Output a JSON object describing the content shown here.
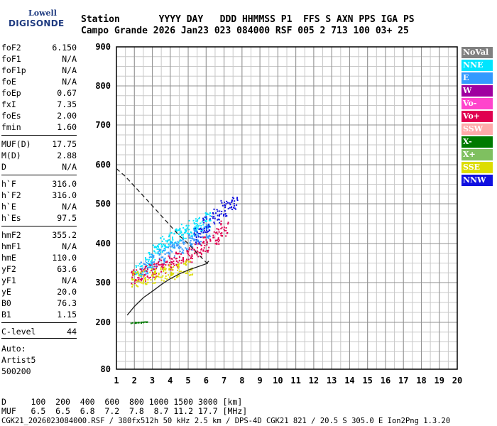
{
  "logo": {
    "line1": "Lowell",
    "line2": "DIGISONDE"
  },
  "header": {
    "row1": "Station       YYYY DAY   DDD HHMMSS P1  FFS S AXN PPS IGA PS",
    "row2": "Campo Grande 2026 Jan23 023 084000 RSF 005 2 713 100 03+ 25"
  },
  "params": [
    {
      "name": "foF2",
      "value": "6.150"
    },
    {
      "name": "foF1",
      "value": "N/A"
    },
    {
      "name": "foF1p",
      "value": "N/A"
    },
    {
      "name": "foE",
      "value": "N/A"
    },
    {
      "name": "foEp",
      "value": "0.67"
    },
    {
      "name": "fxI",
      "value": "7.35"
    },
    {
      "name": "foEs",
      "value": "2.00"
    },
    {
      "name": "fmin",
      "value": "1.60"
    },
    {
      "name": "MUF(D)",
      "value": "17.75"
    },
    {
      "name": "M(D)",
      "value": "2.88"
    },
    {
      "name": "D",
      "value": "N/A"
    },
    {
      "name": "h`F",
      "value": "316.0"
    },
    {
      "name": "h`F2",
      "value": "316.0"
    },
    {
      "name": "h`E",
      "value": "N/A"
    },
    {
      "name": "h`Es",
      "value": "97.5"
    },
    {
      "name": "hmF2",
      "value": "355.2"
    },
    {
      "name": "hmF1",
      "value": "N/A"
    },
    {
      "name": "hmE",
      "value": "110.0"
    },
    {
      "name": "yF2",
      "value": "63.6"
    },
    {
      "name": "yF1",
      "value": "N/A"
    },
    {
      "name": "yE",
      "value": "20.0"
    },
    {
      "name": "B0",
      "value": "76.3"
    },
    {
      "name": "B1",
      "value": "1.15"
    },
    {
      "name": "C-level",
      "value": "44"
    }
  ],
  "auto": {
    "line1": "Auto:",
    "line2": "Artist5",
    "line3": "500200"
  },
  "legend": [
    {
      "label": "NoVal",
      "color": "#808080"
    },
    {
      "label": "NNE",
      "color": "#00e5ff"
    },
    {
      "label": "E",
      "color": "#3399ff"
    },
    {
      "label": "W",
      "color": "#a000a0"
    },
    {
      "label": "Vo-",
      "color": "#ff44cc"
    },
    {
      "label": "Vo+",
      "color": "#e00050"
    },
    {
      "label": "SSW",
      "color": "#ffaaaa"
    },
    {
      "label": "X-",
      "color": "#007a00"
    },
    {
      "label": "X+",
      "color": "#7fc060"
    },
    {
      "label": "SSE",
      "color": "#dddd00"
    },
    {
      "label": "NNW",
      "color": "#1010e0"
    }
  ],
  "footer": {
    "row1": "D     100  200  400  600  800 1000 1500 3000 [km]",
    "row2": "MUF   6.5  6.5  6.8  7.2  7.8  8.7 11.2 17.7 [MHz]",
    "row3": "CGK21_2026023084000.RSF / 380fx512h 50 kHz 2.5 km / DPS-4D CGK21 821 / 20.5 S 305.0 E Ion2Png 1.3.20"
  },
  "chart_data": {
    "type": "scatter",
    "xlabel": "",
    "ylabel": "",
    "xlim": [
      1,
      20
    ],
    "ylim": [
      80,
      900
    ],
    "x_ticks": [
      1,
      2,
      3,
      4,
      5,
      6,
      7,
      8,
      9,
      10,
      11,
      12,
      13,
      14,
      15,
      16,
      17,
      18,
      19,
      20
    ],
    "y_ticks": [
      80,
      200,
      300,
      400,
      500,
      600,
      700,
      800,
      900
    ],
    "grid": true,
    "legend_position": "right",
    "series": [
      {
        "name": "NNE",
        "x": [
          2.2,
          2.8,
          3.2,
          3.6,
          4.0,
          4.4,
          4.8,
          5.2,
          5.6,
          6.0
        ],
        "y": [
          330,
          360,
          380,
          400,
          410,
          420,
          430,
          440,
          450,
          460
        ]
      },
      {
        "name": "E",
        "x": [
          2.5,
          3.0,
          3.5,
          4.0,
          4.5,
          5.0,
          5.5,
          6.0
        ],
        "y": [
          340,
          355,
          370,
          385,
          395,
          405,
          420,
          435
        ]
      },
      {
        "name": "Vo+",
        "x": [
          2.0,
          2.5,
          3.0,
          3.5,
          4.0,
          4.5,
          5.0,
          5.5,
          6.0,
          6.5,
          7.0
        ],
        "y": [
          318,
          325,
          332,
          342,
          352,
          362,
          372,
          385,
          400,
          420,
          440
        ]
      },
      {
        "name": "SSE",
        "x": [
          2.0,
          2.5,
          3.0,
          3.5,
          4.0,
          4.5,
          5.0
        ],
        "y": [
          310,
          315,
          320,
          325,
          330,
          335,
          340
        ]
      },
      {
        "name": "NNW",
        "x": [
          5.5,
          6.0,
          6.5,
          7.0,
          7.5
        ],
        "y": [
          420,
          450,
          470,
          490,
          500
        ]
      },
      {
        "name": "X-",
        "x": [
          2.0,
          2.2,
          2.5
        ],
        "y": [
          200,
          201,
          202
        ]
      }
    ],
    "curves": [
      {
        "name": "profile",
        "x": [
          1.6,
          2.0,
          2.5,
          3.0,
          3.5,
          4.0,
          4.5,
          5.0,
          5.5,
          6.0,
          6.15
        ],
        "y": [
          218,
          240,
          262,
          278,
          295,
          310,
          322,
          332,
          340,
          348,
          355
        ]
      },
      {
        "name": "muf",
        "x": [
          1.0,
          1.5,
          2.0,
          2.5,
          3.0,
          3.5,
          4.0,
          4.5,
          5.0,
          5.5,
          6.15
        ],
        "y": [
          590,
          570,
          545,
          520,
          495,
          470,
          445,
          420,
          400,
          375,
          345
        ]
      }
    ]
  }
}
